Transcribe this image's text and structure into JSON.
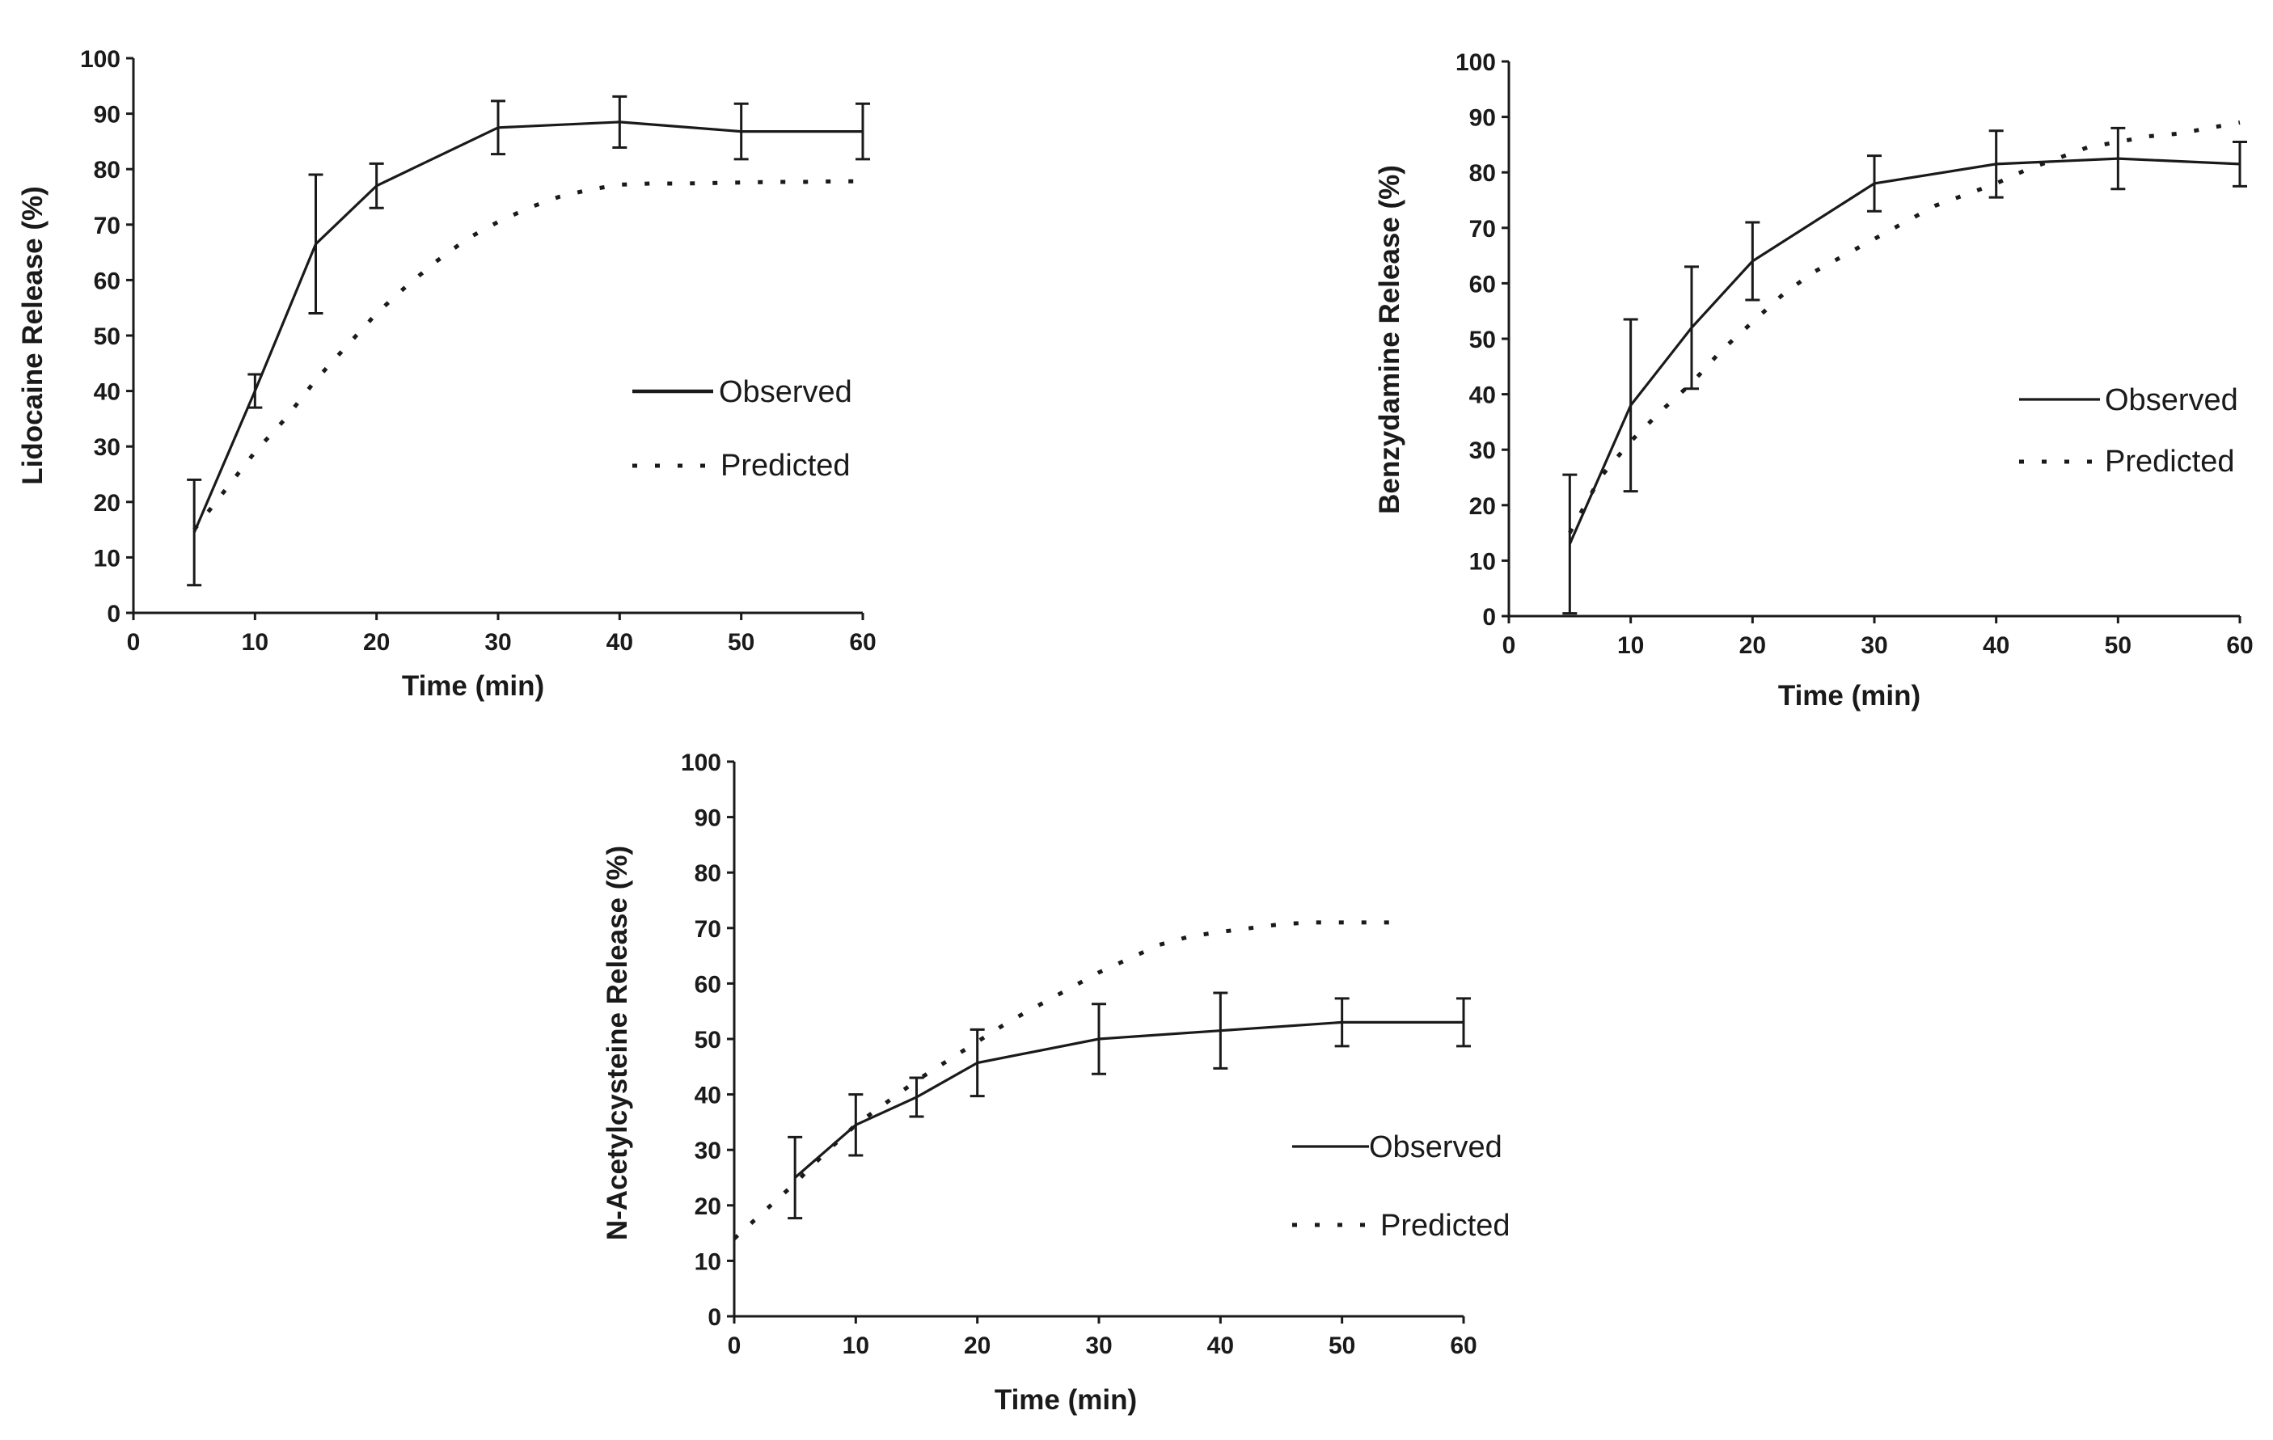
{
  "chart_data": [
    {
      "type": "line",
      "xlabel": "Time (min)",
      "ylabel": "Lidocaine Release (%)",
      "xlim": [
        0,
        60
      ],
      "ylim": [
        0,
        100
      ],
      "xticks": [
        0,
        10,
        20,
        30,
        40,
        50,
        60
      ],
      "yticks": [
        0,
        10,
        20,
        30,
        40,
        50,
        60,
        70,
        80,
        90,
        100
      ],
      "grid": false,
      "legend_position": "right-middle",
      "series": [
        {
          "name": "Observed",
          "style": "solid",
          "x": [
            5,
            10,
            15,
            20,
            30,
            40,
            50,
            60
          ],
          "y": [
            14.5,
            40,
            66.5,
            77,
            87.5,
            88.5,
            86.8,
            86.8
          ],
          "err": [
            9.5,
            3,
            12.5,
            4,
            4.8,
            4.6,
            5,
            5
          ]
        },
        {
          "name": "Predicted",
          "style": "dotted",
          "x": [
            5,
            7.5,
            10,
            12.5,
            15,
            17.5,
            20,
            22.5,
            25,
            27.5,
            30,
            32.5,
            35,
            37.5,
            40,
            42.5,
            45,
            47.5,
            50,
            52.5,
            55,
            57.5,
            60
          ],
          "y": [
            15,
            22,
            29,
            35,
            42,
            48,
            54,
            59,
            63.5,
            67.5,
            70.5,
            73,
            75,
            76.3,
            77.2,
            77.4,
            77.4,
            77.5,
            77.6,
            77.7,
            77.7,
            77.8,
            77.8
          ]
        }
      ]
    },
    {
      "type": "line",
      "xlabel": "Time (min)",
      "ylabel": "Benzydamine Release (%)",
      "xlim": [
        0,
        60
      ],
      "ylim": [
        0,
        100
      ],
      "xticks": [
        0,
        10,
        20,
        30,
        40,
        50,
        60
      ],
      "yticks": [
        0,
        10,
        20,
        30,
        40,
        50,
        60,
        70,
        80,
        90,
        100
      ],
      "grid": false,
      "legend_position": "right-middle",
      "series": [
        {
          "name": "Observed",
          "style": "solid",
          "x": [
            5,
            10,
            15,
            20,
            30,
            40,
            50,
            60
          ],
          "y": [
            13,
            38,
            52,
            64,
            78,
            81.5,
            82.5,
            81.5
          ],
          "err": [
            12.5,
            15.5,
            11,
            7,
            5,
            6,
            5.5,
            4
          ]
        },
        {
          "name": "Predicted",
          "style": "dotted",
          "x": [
            5,
            7.5,
            10,
            12.5,
            15,
            17.5,
            20,
            22.5,
            25,
            27.5,
            30,
            32.5,
            35,
            37.5,
            40,
            42.5,
            45,
            47.5,
            50,
            52.5,
            55,
            57.5,
            60
          ],
          "y": [
            15,
            25,
            31.5,
            37,
            42,
            48,
            53,
            58,
            62,
            65,
            68,
            71,
            74,
            76,
            78,
            80.5,
            82.5,
            84.5,
            85.5,
            86.5,
            87,
            88,
            89
          ]
        }
      ]
    },
    {
      "type": "line",
      "xlabel": "Time (min)",
      "ylabel": "N-Acetylcysteine Release (%)",
      "xlim": [
        0,
        60
      ],
      "ylim": [
        0,
        100
      ],
      "xticks": [
        0,
        10,
        20,
        30,
        40,
        50,
        60
      ],
      "yticks": [
        0,
        10,
        20,
        30,
        40,
        50,
        60,
        70,
        80,
        90,
        100
      ],
      "grid": false,
      "legend_position": "right-bottom",
      "series": [
        {
          "name": "Observed",
          "style": "solid",
          "x": [
            5,
            10,
            15,
            20,
            30,
            40,
            50,
            60
          ],
          "y": [
            25,
            34.5,
            39.5,
            45.7,
            50,
            51.5,
            53,
            53
          ],
          "err": [
            7.3,
            5.5,
            3.5,
            6,
            6.3,
            6.8,
            4.3,
            4.3
          ]
        },
        {
          "name": "Predicted",
          "style": "dotted",
          "x": [
            0,
            2.5,
            5,
            7.5,
            10,
            12.5,
            15,
            17.5,
            20,
            22.5,
            25,
            27.5,
            30,
            32.5,
            35,
            37.5,
            40,
            42.5,
            45,
            47.5,
            50,
            52.5,
            55
          ],
          "y": [
            14,
            19,
            24,
            29.5,
            34.5,
            38.5,
            42.5,
            46,
            49.5,
            53,
            56,
            59,
            62,
            64.5,
            67,
            68.5,
            69.3,
            70,
            70.7,
            71,
            71,
            71,
            71
          ]
        }
      ]
    }
  ]
}
